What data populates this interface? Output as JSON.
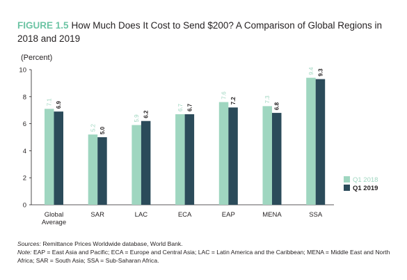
{
  "figure": {
    "label": "FIGURE 1.5",
    "title": "How Much Does It Cost to Send $200? A Comparison of Global Regions in 2018 and 2019"
  },
  "colors": {
    "accent": "#6cc4a4",
    "q1_2018": "#9fd6c0",
    "q1_2019": "#2b4b5a"
  },
  "chart_data": {
    "type": "bar",
    "title": "",
    "ylabel": "(Percent)",
    "xlabel": "",
    "categories": [
      "Global Average",
      "SAR",
      "LAC",
      "ECA",
      "EAP",
      "MENA",
      "SSA"
    ],
    "series": [
      {
        "name": "Q1 2018",
        "values": [
          7.1,
          5.2,
          5.9,
          6.7,
          7.6,
          7.3,
          9.4
        ]
      },
      {
        "name": "Q1 2019",
        "values": [
          6.9,
          5.0,
          6.2,
          6.7,
          7.2,
          6.8,
          9.3
        ]
      }
    ],
    "ylim": [
      0,
      10
    ],
    "yticks": [
      0,
      2,
      4,
      6,
      8,
      10
    ],
    "grid": false,
    "legend_position": "right",
    "data_labels": true
  },
  "notes": {
    "sources_label": "Sources:",
    "sources_text": "Remittance Prices Worldwide database, World Bank.",
    "note_label": "Note:",
    "note_text": "EAP = East Asia and Pacific; ECA = Europe and Central Asia; LAC = Latin America and the Caribbean; MENA = Middle East and North Africa; SAR = South Asia; SSA = Sub-Saharan Africa."
  }
}
